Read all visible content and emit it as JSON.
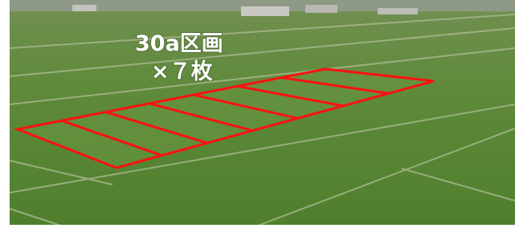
{
  "overlay": {
    "lines": [
      "30a区画",
      "×７枚"
    ]
  }
}
